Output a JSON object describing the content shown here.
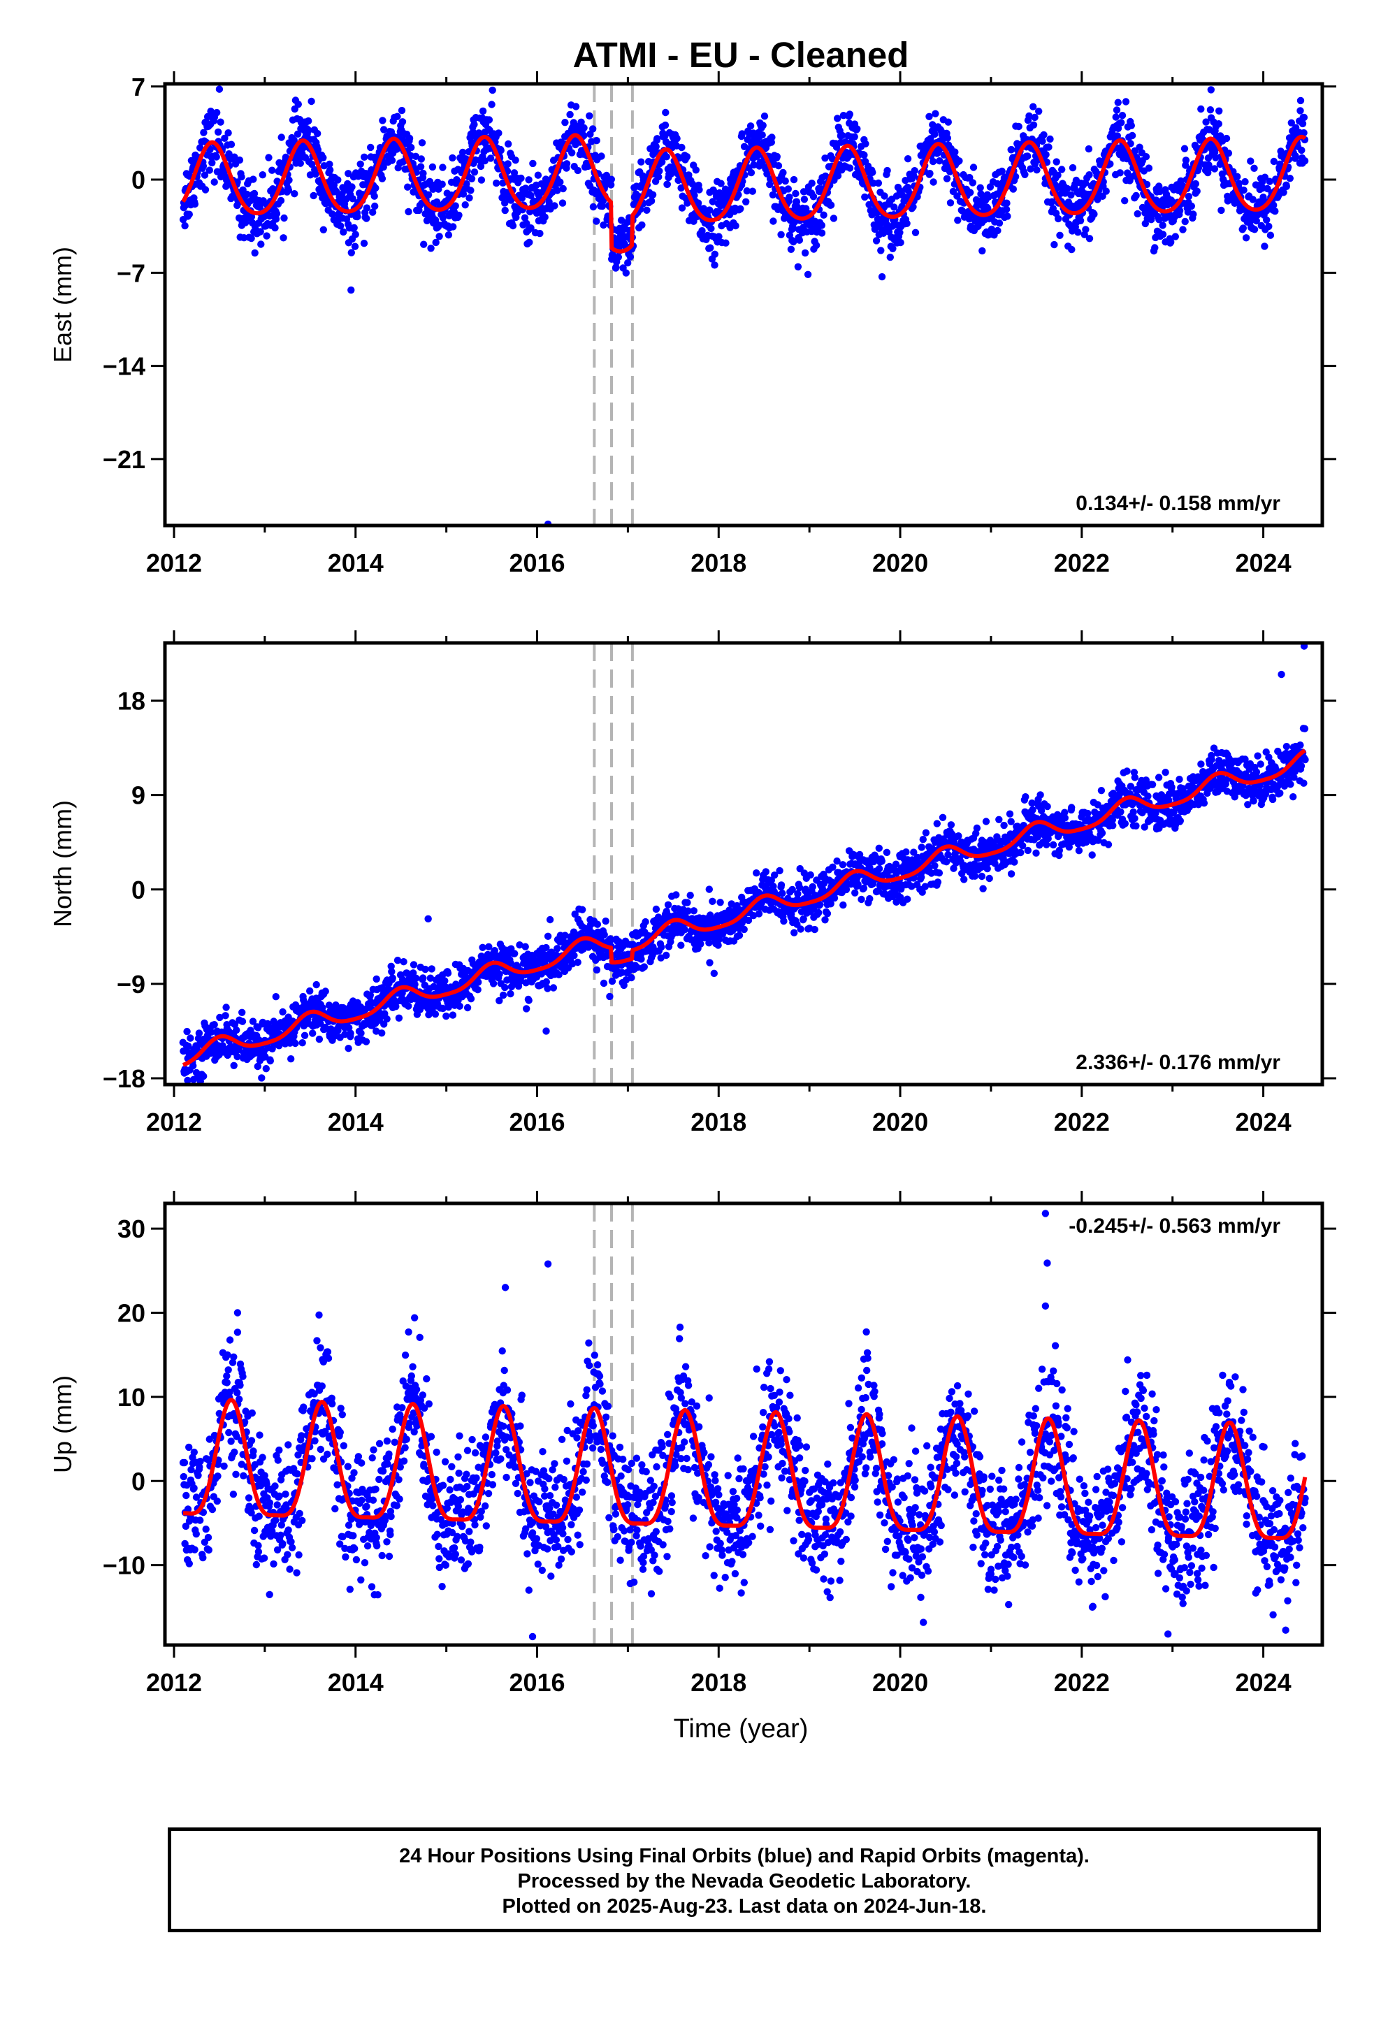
{
  "title": "ATMI  - EU - Cleaned",
  "xlabel": "Time (year)",
  "footer": {
    "line1": "24 Hour Positions Using Final Orbits (blue) and Rapid Orbits (magenta).",
    "line2": "Processed by the Nevada Geodetic Laboratory.",
    "line3": "Plotted on 2025-Aug-23. Last data on 2024-Jun-18."
  },
  "colors": {
    "points": "#0000ff",
    "model": "#ff0000",
    "steps": "#b4b4b4",
    "frame": "#000000"
  },
  "chart_data": [
    {
      "type": "scatter",
      "component": "East",
      "ylabel": "East (mm)",
      "rate_label": "0.134+/- 0.158 mm/yr",
      "xlim": [
        2011.9,
        2024.65
      ],
      "ylim": [
        -26,
        7.2
      ],
      "yticks": [
        7,
        0,
        -7,
        -14,
        -21
      ],
      "xticks": [
        2012,
        2014,
        2016,
        2018,
        2020,
        2022,
        2024
      ],
      "step_epochs": [
        2016.63,
        2016.82,
        2017.05
      ],
      "data_range": [
        2012.1,
        2024.46
      ],
      "model": {
        "rate": 0.134,
        "offset_at_2012": -0.3,
        "annual_amp": 2.7,
        "annual_peak": 2012.42,
        "semiannual_amp": 0.35,
        "steps": [
          {
            "t": 2016.82,
            "dy": -3.4
          },
          {
            "t": 2017.05,
            "dy": 2.2
          }
        ]
      },
      "scatter_sigma": 1.3,
      "outliers": [
        {
          "x": 2012.5,
          "y": 6.8
        },
        {
          "x": 2013.95,
          "y": -8.3
        },
        {
          "x": 2016.12,
          "y": -25.9
        },
        {
          "x": 2019.8,
          "y": -7.3
        },
        {
          "x": 2015.3,
          "y": 4.5
        },
        {
          "x": 2022.4,
          "y": 5.8
        }
      ]
    },
    {
      "type": "scatter",
      "component": "North",
      "ylabel": "North (mm)",
      "rate_label": "2.336+/- 0.176 mm/yr",
      "xlim": [
        2011.9,
        2024.65
      ],
      "ylim": [
        -18.6,
        23.5
      ],
      "yticks": [
        18,
        9,
        0,
        -9,
        -18
      ],
      "xticks": [
        2012,
        2014,
        2016,
        2018,
        2020,
        2022,
        2024
      ],
      "step_epochs": [
        2016.63,
        2016.82,
        2017.05
      ],
      "data_range": [
        2012.1,
        2024.46
      ],
      "model": {
        "rate": 2.336,
        "offset_at_2012": -16.3,
        "annual_amp": 0.9,
        "annual_peak": 2012.5,
        "semiannual_amp": 0.2,
        "steps": [
          {
            "t": 2016.82,
            "dy": -1.4
          },
          {
            "t": 2017.05,
            "dy": 0.8
          },
          {
            "t": 2024.3,
            "dy": 0.0
          }
        ]
      },
      "scatter_sigma": 1.15,
      "outliers": [
        {
          "x": 2024.45,
          "y": 23.2
        },
        {
          "x": 2024.2,
          "y": 20.5
        },
        {
          "x": 2016.1,
          "y": -13.5
        },
        {
          "x": 2016.8,
          "y": -10.2
        },
        {
          "x": 2017.95,
          "y": -8.0
        },
        {
          "x": 2014.8,
          "y": -2.8
        },
        {
          "x": 2012.15,
          "y": -18.2
        }
      ]
    },
    {
      "type": "scatter",
      "component": "Up",
      "ylabel": "Up (mm)",
      "rate_label": "-0.245+/- 0.563 mm/yr",
      "xlim": [
        2011.9,
        2024.65
      ],
      "ylim": [
        -19.5,
        33
      ],
      "yticks": [
        30,
        20,
        10,
        0,
        -10
      ],
      "xticks": [
        2012,
        2014,
        2016,
        2018,
        2020,
        2022,
        2024
      ],
      "step_epochs": [
        2016.63,
        2016.82,
        2017.05
      ],
      "data_range": [
        2012.1,
        2024.46
      ],
      "model": {
        "rate": -0.245,
        "offset_at_2012": 1.2,
        "annual_amp": 6.8,
        "annual_peak": 2012.63,
        "semiannual_amp": 1.8,
        "steps": []
      },
      "scatter_sigma": 3.8,
      "outliers": [
        {
          "x": 2016.12,
          "y": 25.8
        },
        {
          "x": 2015.65,
          "y": 23.0
        },
        {
          "x": 2021.6,
          "y": 31.8
        },
        {
          "x": 2021.62,
          "y": 25.9
        },
        {
          "x": 2021.6,
          "y": 20.8
        },
        {
          "x": 2015.95,
          "y": -18.5
        },
        {
          "x": 2022.95,
          "y": -18.2
        },
        {
          "x": 2012.7,
          "y": 20.0
        },
        {
          "x": 2014.65,
          "y": 19.4
        }
      ]
    }
  ]
}
